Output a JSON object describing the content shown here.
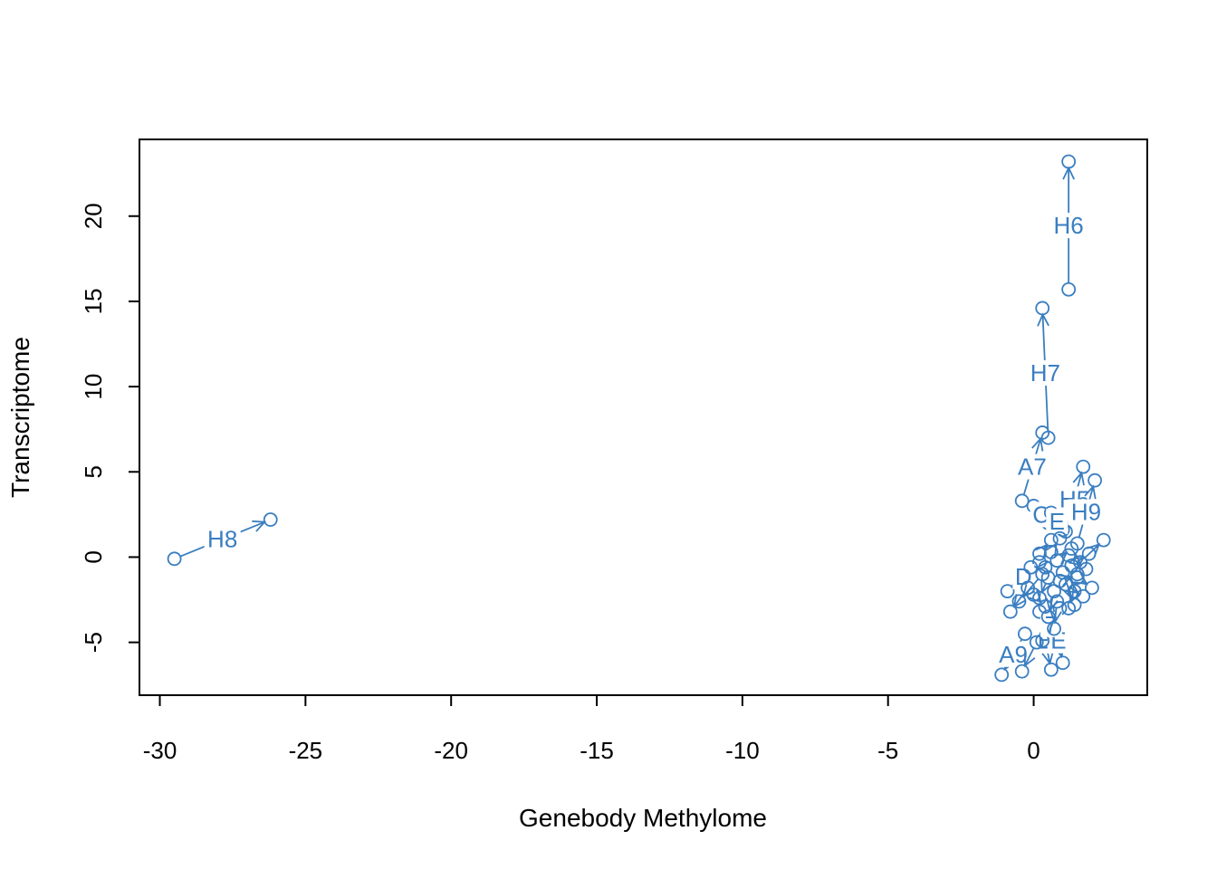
{
  "chart_data": {
    "type": "scatter",
    "title": "",
    "xlabel": "Genebody Methylome",
    "ylabel": "Transcriptome",
    "xlim": [
      -30.7,
      3.9
    ],
    "ylim": [
      -8.1,
      24.5
    ],
    "xticks": [
      -30,
      -25,
      -20,
      -15,
      -10,
      -5,
      0
    ],
    "yticks": [
      -5,
      0,
      5,
      10,
      15,
      20
    ],
    "grid": false,
    "legend": "none",
    "color": "#3A7EC1",
    "arrows": [
      {
        "label": "H8",
        "from": [
          -29.5,
          -0.1
        ],
        "to": [
          -26.2,
          2.2
        ]
      },
      {
        "label": "H6",
        "from": [
          1.2,
          15.7
        ],
        "to": [
          1.2,
          23.2
        ]
      },
      {
        "label": "H7",
        "from": [
          0.5,
          7.0
        ],
        "to": [
          0.3,
          14.6
        ]
      },
      {
        "label": "A7",
        "from": [
          -0.4,
          3.3
        ],
        "to": [
          0.3,
          7.3
        ]
      },
      {
        "label": "H5",
        "from": [
          1.1,
          1.5
        ],
        "to": [
          1.7,
          5.3
        ]
      },
      {
        "label": "H9",
        "from": [
          1.5,
          0.8
        ],
        "to": [
          2.1,
          4.5
        ]
      },
      {
        "label": "C",
        "from": [
          0.0,
          3.0
        ],
        "to": [
          0.5,
          2.0
        ]
      },
      {
        "label": "E",
        "from": [
          0.6,
          2.6
        ],
        "to": [
          1.0,
          1.6
        ]
      },
      {
        "label": "A9",
        "from": [
          -0.3,
          -4.5
        ],
        "to": [
          -1.1,
          -6.9
        ]
      },
      {
        "label": "B",
        "from": [
          0.2,
          -3.2
        ],
        "to": [
          0.6,
          -6.6
        ]
      },
      {
        "label": "E",
        "from": [
          0.7,
          -3.6
        ],
        "to": [
          1.0,
          -6.2
        ]
      },
      {
        "label": "7",
        "from": [
          0.9,
          -3.0
        ],
        "to": [
          0.3,
          -4.9
        ]
      },
      {
        "label": "",
        "from": [
          0.1,
          -5.0
        ],
        "to": [
          -0.4,
          -6.7
        ]
      },
      {
        "label": "D",
        "from": [
          0.2,
          -0.3
        ],
        "to": [
          -0.9,
          -2.0
        ]
      },
      {
        "label": "",
        "from": [
          -0.2,
          -1.8
        ],
        "to": [
          -0.8,
          -3.2
        ]
      },
      {
        "label": "",
        "from": [
          1.6,
          -0.3
        ],
        "to": [
          2.4,
          1.0
        ]
      },
      {
        "label": "",
        "from": [
          1.3,
          -0.5
        ],
        "to": [
          1.9,
          0.2
        ]
      },
      {
        "label": "",
        "from": [
          1.5,
          -1.2
        ],
        "to": [
          2.0,
          -1.8
        ]
      },
      {
        "label": "",
        "from": [
          1.1,
          -1.6
        ],
        "to": [
          1.7,
          -2.3
        ]
      },
      {
        "label": "",
        "from": [
          0.4,
          -0.6
        ],
        "to": [
          -0.1,
          -0.6
        ]
      },
      {
        "label": "",
        "from": [
          0.8,
          -0.2
        ],
        "to": [
          1.3,
          0.5
        ]
      },
      {
        "label": "",
        "from": [
          0.5,
          -1.2
        ],
        "to": [
          0.2,
          -2.4
        ]
      },
      {
        "label": "",
        "from": [
          1.0,
          -0.9
        ],
        "to": [
          1.4,
          -2.8
        ]
      },
      {
        "label": "",
        "from": [
          0.6,
          0.3
        ],
        "to": [
          0.9,
          1.1
        ]
      },
      {
        "label": "",
        "from": [
          0.3,
          -1.0
        ],
        "to": [
          -0.5,
          -2.6
        ]
      },
      {
        "label": "",
        "from": [
          1.2,
          0.1
        ],
        "to": [
          1.8,
          -0.7
        ]
      },
      {
        "label": "",
        "from": [
          0.7,
          -2.0
        ],
        "to": [
          0.5,
          -3.5
        ]
      },
      {
        "label": "",
        "from": [
          0.9,
          -1.4
        ],
        "to": [
          1.5,
          -1.0
        ]
      },
      {
        "label": "",
        "from": [
          0.2,
          0.2
        ],
        "to": [
          0.6,
          1.0
        ]
      },
      {
        "label": "",
        "from": [
          1.4,
          -2.0
        ],
        "to": [
          1.2,
          -3.0
        ]
      },
      {
        "label": "",
        "from": [
          0.0,
          -2.2
        ],
        "to": [
          0.4,
          -2.9
        ]
      },
      {
        "label": "",
        "from": [
          0.8,
          -2.6
        ],
        "to": [
          0.7,
          -4.2
        ]
      }
    ]
  }
}
